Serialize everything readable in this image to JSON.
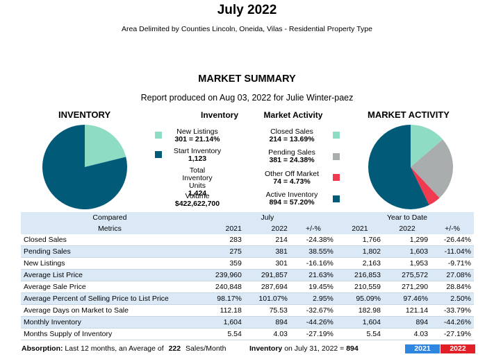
{
  "header": {
    "title": "July 2022",
    "subtitle": "Area Delimited by Counties Lincoln, Oneida, Vilas - Residential Property Type",
    "section_title": "MARKET SUMMARY",
    "report_line": "Report produced on Aug 03, 2022 for Julie Winter-paez"
  },
  "inventory": {
    "chart_title": "INVENTORY",
    "legend_title": "Inventory",
    "new_listings_label": "New Listings",
    "new_listings_value": "301 = 21.14%",
    "start_inventory_label": "Start Inventory",
    "start_inventory_value": "1,123",
    "total_units_label": "Total Inventory Units",
    "total_units_value": "1,424",
    "volume_label": "Volume",
    "volume_value": "$422,622,700"
  },
  "market_activity": {
    "chart_title": "MARKET ACTIVITY",
    "legend_title": "Market Activity",
    "closed_label": "Closed Sales",
    "closed_value": "214 = 13.69%",
    "pending_label": "Pending Sales",
    "pending_value": "381 = 24.38%",
    "offmarket_label": "Other Off Market",
    "offmarket_value": "74 = 4.73%",
    "active_label": "Active Inventory",
    "active_value": "894 = 57.20%"
  },
  "colors": {
    "new_listings": "#8fdcc5",
    "start_inventory": "#005a78",
    "closed": "#8fdcc5",
    "pending": "#a9adad",
    "offmarket": "#f03a4f",
    "active": "#005a78",
    "badge_2021": "#2f86e0",
    "badge_2022": "#e01f26"
  },
  "chart_data": [
    {
      "type": "pie",
      "title": "INVENTORY",
      "labels": [
        "New Listings",
        "Start Inventory"
      ],
      "values": [
        21.14,
        78.86
      ]
    },
    {
      "type": "pie",
      "title": "MARKET ACTIVITY",
      "labels": [
        "Closed Sales",
        "Pending Sales",
        "Other Off Market",
        "Active Inventory"
      ],
      "values": [
        13.69,
        24.38,
        4.73,
        57.2
      ]
    }
  ],
  "table": {
    "group_compared": "Compared",
    "group_month": "July",
    "group_ytd": "Year to Date",
    "col_metrics": "Metrics",
    "col_2021": "2021",
    "col_2022": "2022",
    "col_change": "+/-%",
    "rows": [
      {
        "metric": "Closed Sales",
        "m2021": "283",
        "m2022": "214",
        "mchg": "-24.38%",
        "y2021": "1,766",
        "y2022": "1,299",
        "ychg": "-26.44%"
      },
      {
        "metric": "Pending Sales",
        "m2021": "275",
        "m2022": "381",
        "mchg": "38.55%",
        "y2021": "1,802",
        "y2022": "1,603",
        "ychg": "-11.04%"
      },
      {
        "metric": "New Listings",
        "m2021": "359",
        "m2022": "301",
        "mchg": "-16.16%",
        "y2021": "2,163",
        "y2022": "1,953",
        "ychg": "-9.71%"
      },
      {
        "metric": "Average List Price",
        "m2021": "239,960",
        "m2022": "291,857",
        "mchg": "21.63%",
        "y2021": "216,853",
        "y2022": "275,572",
        "ychg": "27.08%"
      },
      {
        "metric": "Average Sale Price",
        "m2021": "240,848",
        "m2022": "287,694",
        "mchg": "19.45%",
        "y2021": "210,559",
        "y2022": "271,290",
        "ychg": "28.84%"
      },
      {
        "metric": "Average Percent of Selling Price to List Price",
        "m2021": "98.17%",
        "m2022": "101.07%",
        "mchg": "2.95%",
        "y2021": "95.09%",
        "y2022": "97.46%",
        "ychg": "2.50%"
      },
      {
        "metric": "Average Days on Market to Sale",
        "m2021": "112.18",
        "m2022": "75.53",
        "mchg": "-32.67%",
        "y2021": "182.98",
        "y2022": "121.14",
        "ychg": "-33.79%"
      },
      {
        "metric": "Monthly Inventory",
        "m2021": "1,604",
        "m2022": "894",
        "mchg": "-44.26%",
        "y2021": "1,604",
        "y2022": "894",
        "ychg": "-44.26%"
      },
      {
        "metric": "Months Supply of Inventory",
        "m2021": "5.54",
        "m2022": "4.03",
        "mchg": "-27.19%",
        "y2021": "5.54",
        "y2022": "4.03",
        "ychg": "-27.19%"
      }
    ]
  },
  "footer": {
    "absorption_label": "Absorption:",
    "absorption_text": "Last 12 months, an Average of",
    "absorption_value": "222",
    "absorption_unit": "Sales/Month",
    "inventory_label": "Inventory",
    "inventory_text": "on July 31, 2022 =",
    "inventory_value": "894",
    "badge_2021": "2021",
    "badge_2022": "2022"
  }
}
